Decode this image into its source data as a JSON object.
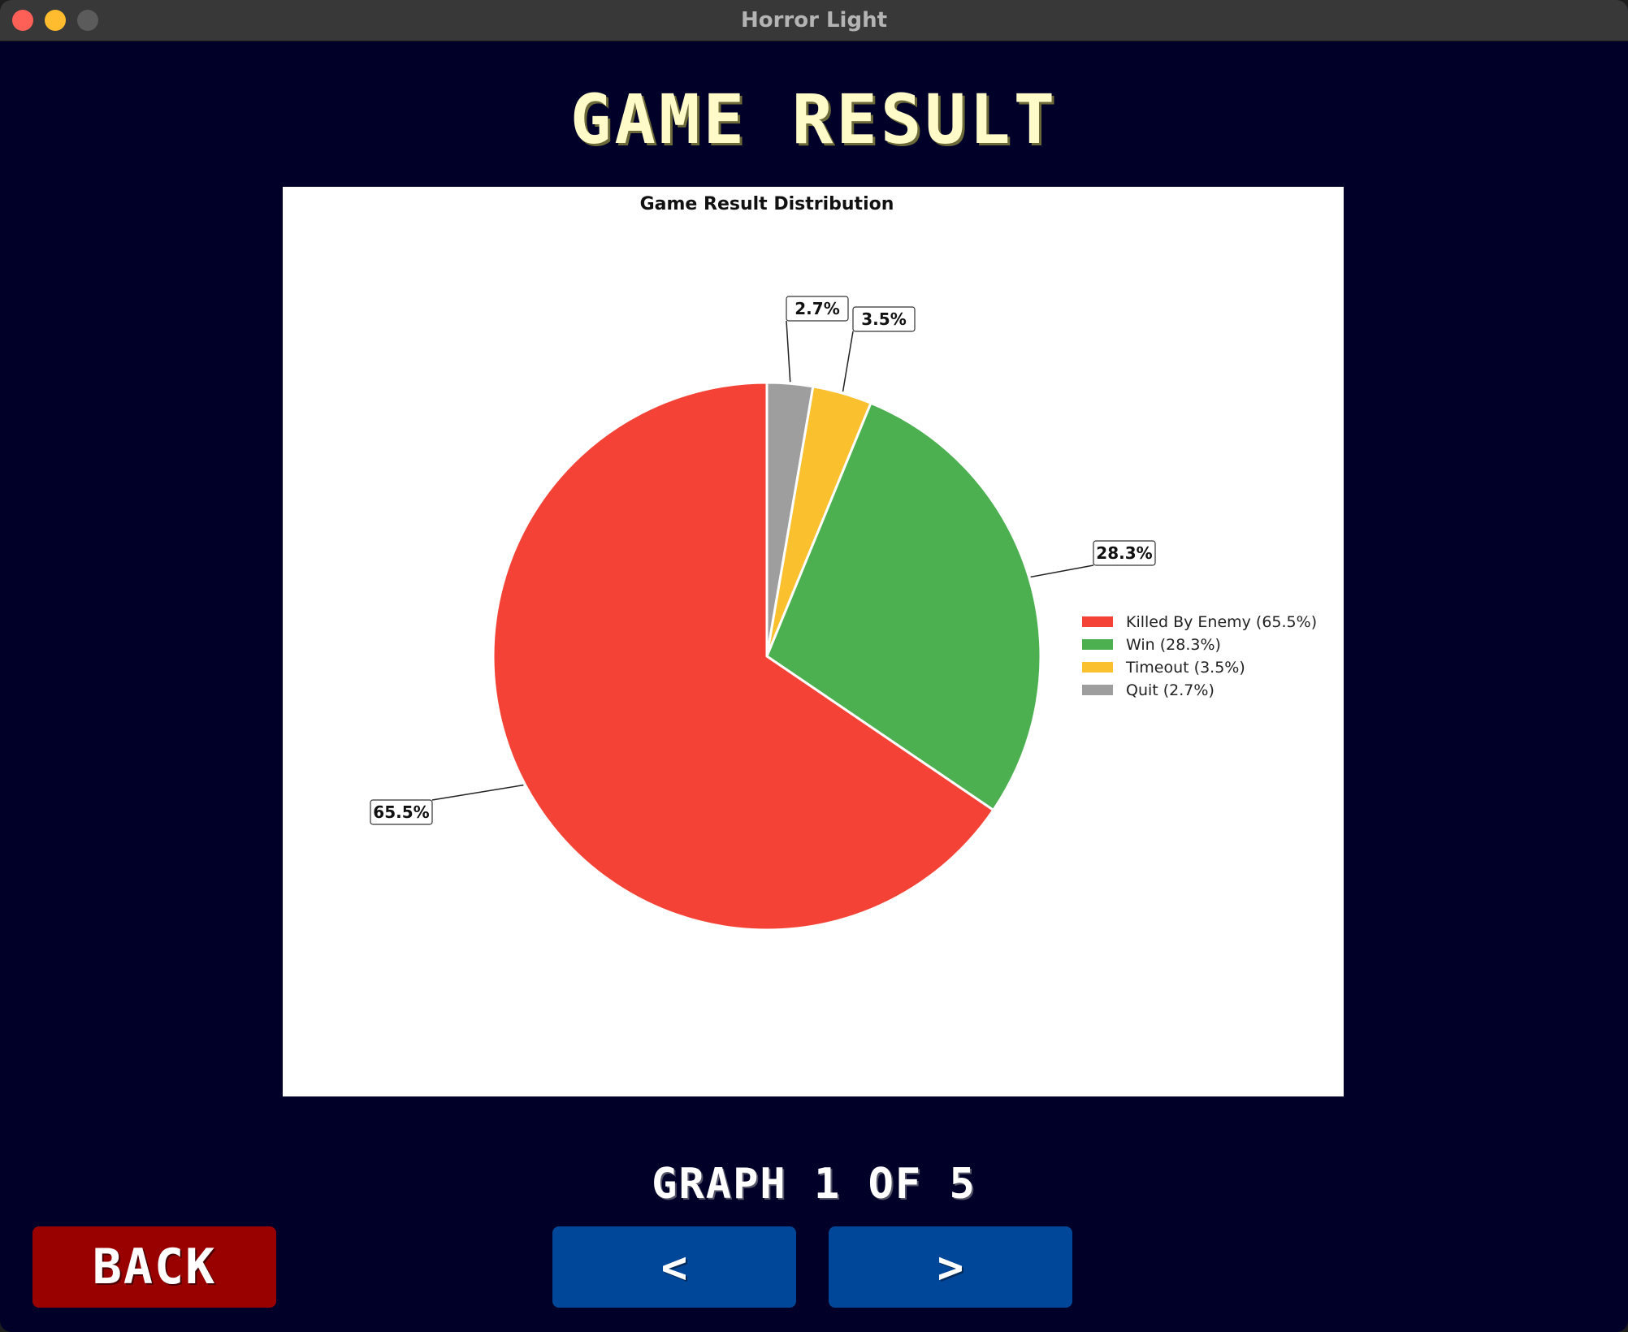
{
  "window": {
    "title": "Horror Light"
  },
  "page": {
    "title": "GAME RESULT",
    "counter": "GRAPH 1 OF 5"
  },
  "buttons": {
    "back": "BACK",
    "prev": "<",
    "next": ">"
  },
  "chart_data": {
    "type": "pie",
    "title": "Game Result Distribution",
    "legend_position": "right",
    "slices": [
      {
        "name": "Killed By Enemy",
        "value": 65.5,
        "label": "65.5%",
        "legend": "Killed By Enemy (65.5%)",
        "color": "#f44336"
      },
      {
        "name": "Win",
        "value": 28.3,
        "label": "28.3%",
        "legend": "Win (28.3%)",
        "color": "#4caf50"
      },
      {
        "name": "Timeout",
        "value": 3.5,
        "label": "3.5%",
        "legend": "Timeout (3.5%)",
        "color": "#fbc02d"
      },
      {
        "name": "Quit",
        "value": 2.7,
        "label": "2.7%",
        "legend": "Quit (2.7%)",
        "color": "#9e9e9e"
      }
    ]
  },
  "colors": {
    "background": "#000029",
    "title": "#fffbc8",
    "back_button": "#990000",
    "nav_button": "#004699"
  }
}
